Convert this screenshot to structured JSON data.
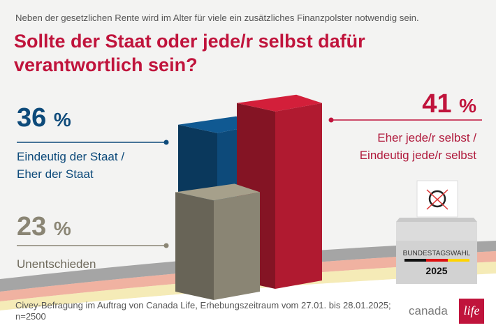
{
  "subtitle": "Neben der gesetzlichen Rente wird im Alter für viele ein zusätzliches Finanzpolster notwendig sein.",
  "title": "Sollte der Staat oder jede/r selbst dafür verantwortlich sein?",
  "chart_data": {
    "type": "bar",
    "categories": [
      "Eindeutig der Staat / Eher der Staat",
      "Eher jede/r selbst / Eindeutig jede/r selbst",
      "Unentschieden"
    ],
    "values": [
      36,
      41,
      23
    ],
    "unit": "%",
    "colors": [
      "#0d4a7a",
      "#b01a30",
      "#8a8574"
    ]
  },
  "labels": {
    "blue": {
      "value": "36",
      "unit": "%",
      "line1": "Eindeutig der Staat /",
      "line2": "Eher der Staat"
    },
    "red": {
      "value": "41",
      "unit": "%",
      "line1": "Eher jede/r selbst /",
      "line2": "Eindeutig jede/r selbst"
    },
    "gray": {
      "value": "23",
      "unit": "%",
      "line1": "Unentschieden"
    }
  },
  "ballot_box": {
    "label": "BUNDESTAGSWAHL",
    "year": "2025"
  },
  "footer": "Civey-Befragung im Auftrag von Canada Life, Erhebungszeitraum vom 27.01. bis 28.01.2025; n=2500",
  "logo": {
    "word1": "canada",
    "word2": "life"
  }
}
